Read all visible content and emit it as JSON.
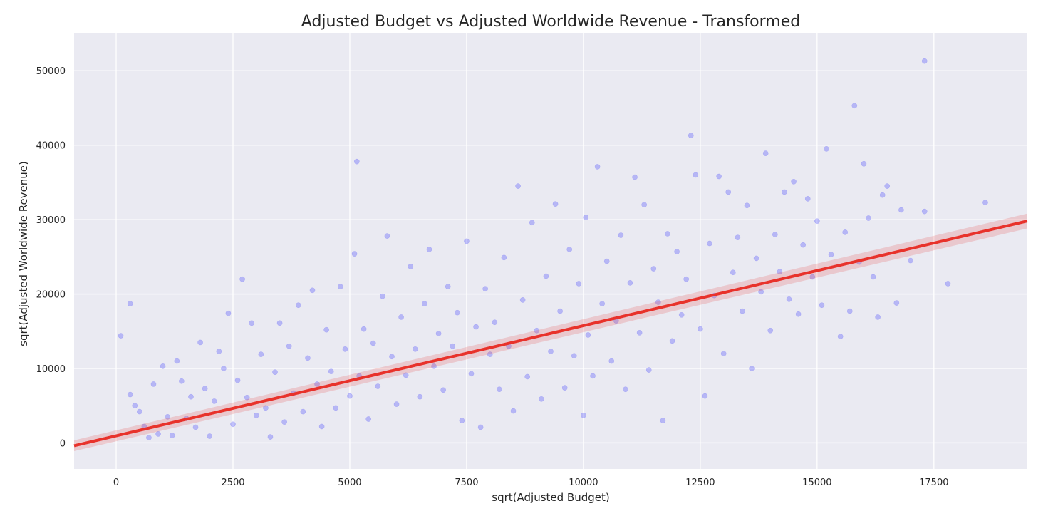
{
  "chart_data": {
    "type": "scatter",
    "title": "Adjusted Budget vs Adjusted Worldwide Revenue - Transformed",
    "xlabel": "sqrt(Adjusted Budget)",
    "ylabel": "sqrt(Adjusted Worldwide Revenue)",
    "xlim": [
      -900,
      19500
    ],
    "ylim": [
      -3500,
      55000
    ],
    "xticks": [
      0,
      2500,
      5000,
      7500,
      10000,
      12500,
      15000,
      17500
    ],
    "yticks": [
      0,
      10000,
      20000,
      30000,
      40000,
      50000
    ],
    "xtick_labels": [
      "0",
      "2500",
      "5000",
      "7500",
      "10000",
      "12500",
      "15000",
      "17500"
    ],
    "ytick_labels": [
      "0",
      "10000",
      "20000",
      "30000",
      "40000",
      "50000"
    ],
    "grid": true,
    "background_color": "#eaeaf2",
    "point_color": "#0000ff",
    "line_color": "#e8322b",
    "regression_line": {
      "intercept": 950,
      "slope": 1.48
    },
    "points": [
      [
        100,
        14400
      ],
      [
        300,
        18700
      ],
      [
        300,
        6500
      ],
      [
        400,
        5000
      ],
      [
        500,
        4200
      ],
      [
        600,
        2200
      ],
      [
        700,
        700
      ],
      [
        800,
        7900
      ],
      [
        900,
        1200
      ],
      [
        1000,
        10300
      ],
      [
        1100,
        3500
      ],
      [
        1200,
        1000
      ],
      [
        1300,
        11000
      ],
      [
        1400,
        8300
      ],
      [
        1500,
        3300
      ],
      [
        1600,
        6200
      ],
      [
        1700,
        2100
      ],
      [
        1800,
        13500
      ],
      [
        1900,
        7300
      ],
      [
        2000,
        900
      ],
      [
        2100,
        5600
      ],
      [
        2200,
        12300
      ],
      [
        2300,
        10000
      ],
      [
        2400,
        17400
      ],
      [
        2500,
        2500
      ],
      [
        2600,
        8400
      ],
      [
        2700,
        22000
      ],
      [
        2800,
        6100
      ],
      [
        2900,
        16100
      ],
      [
        3000,
        3700
      ],
      [
        3100,
        11900
      ],
      [
        3200,
        4700
      ],
      [
        3300,
        800
      ],
      [
        3400,
        9500
      ],
      [
        3500,
        16100
      ],
      [
        3600,
        2800
      ],
      [
        3700,
        13000
      ],
      [
        3800,
        6700
      ],
      [
        3900,
        18500
      ],
      [
        4000,
        4200
      ],
      [
        4100,
        11400
      ],
      [
        4200,
        20500
      ],
      [
        4300,
        7900
      ],
      [
        4400,
        2200
      ],
      [
        4500,
        15200
      ],
      [
        4600,
        9600
      ],
      [
        4700,
        4700
      ],
      [
        4800,
        21000
      ],
      [
        4900,
        12600
      ],
      [
        5000,
        6300
      ],
      [
        5100,
        25400
      ],
      [
        5150,
        37800
      ],
      [
        5200,
        9000
      ],
      [
        5300,
        15300
      ],
      [
        5400,
        3200
      ],
      [
        5500,
        13400
      ],
      [
        5600,
        7600
      ],
      [
        5700,
        19700
      ],
      [
        5800,
        27800
      ],
      [
        5900,
        11600
      ],
      [
        6000,
        5200
      ],
      [
        6100,
        16900
      ],
      [
        6200,
        9100
      ],
      [
        6300,
        23700
      ],
      [
        6400,
        12600
      ],
      [
        6500,
        6200
      ],
      [
        6600,
        18700
      ],
      [
        6700,
        26000
      ],
      [
        6800,
        10300
      ],
      [
        6900,
        14700
      ],
      [
        7000,
        7100
      ],
      [
        7100,
        21000
      ],
      [
        7200,
        13000
      ],
      [
        7300,
        17500
      ],
      [
        7400,
        3000
      ],
      [
        7500,
        27100
      ],
      [
        7600,
        9300
      ],
      [
        7700,
        15600
      ],
      [
        7800,
        2100
      ],
      [
        7900,
        20700
      ],
      [
        8000,
        11900
      ],
      [
        8100,
        16200
      ],
      [
        8200,
        7200
      ],
      [
        8300,
        24900
      ],
      [
        8400,
        13000
      ],
      [
        8500,
        4300
      ],
      [
        8600,
        34500
      ],
      [
        8700,
        19200
      ],
      [
        8800,
        8900
      ],
      [
        8900,
        29600
      ],
      [
        9000,
        15100
      ],
      [
        9100,
        5900
      ],
      [
        9200,
        22400
      ],
      [
        9300,
        12300
      ],
      [
        9400,
        32100
      ],
      [
        9500,
        17700
      ],
      [
        9600,
        7400
      ],
      [
        9700,
        26000
      ],
      [
        9800,
        11700
      ],
      [
        9900,
        21400
      ],
      [
        10000,
        3700
      ],
      [
        10050,
        30300
      ],
      [
        10100,
        14500
      ],
      [
        10200,
        9000
      ],
      [
        10300,
        37100
      ],
      [
        10400,
        18700
      ],
      [
        10500,
        24400
      ],
      [
        10600,
        11000
      ],
      [
        10700,
        16400
      ],
      [
        10800,
        27900
      ],
      [
        10900,
        7200
      ],
      [
        11000,
        21500
      ],
      [
        11100,
        35700
      ],
      [
        11200,
        14800
      ],
      [
        11300,
        32000
      ],
      [
        11400,
        9800
      ],
      [
        11500,
        23400
      ],
      [
        11600,
        18900
      ],
      [
        11700,
        3000
      ],
      [
        11800,
        28100
      ],
      [
        11900,
        13700
      ],
      [
        12000,
        25700
      ],
      [
        12100,
        17200
      ],
      [
        12200,
        22000
      ],
      [
        12300,
        41300
      ],
      [
        12400,
        36000
      ],
      [
        12500,
        15300
      ],
      [
        12600,
        6300
      ],
      [
        12700,
        26800
      ],
      [
        12800,
        19800
      ],
      [
        12900,
        35800
      ],
      [
        13000,
        12000
      ],
      [
        13100,
        33700
      ],
      [
        13200,
        22900
      ],
      [
        13300,
        27600
      ],
      [
        13400,
        17700
      ],
      [
        13500,
        31900
      ],
      [
        13600,
        10000
      ],
      [
        13700,
        24800
      ],
      [
        13800,
        20300
      ],
      [
        13900,
        38900
      ],
      [
        14000,
        15100
      ],
      [
        14100,
        28000
      ],
      [
        14200,
        23000
      ],
      [
        14300,
        33700
      ],
      [
        14400,
        19300
      ],
      [
        14500,
        35100
      ],
      [
        14600,
        17300
      ],
      [
        14700,
        26600
      ],
      [
        14800,
        32800
      ],
      [
        14900,
        22300
      ],
      [
        15000,
        29800
      ],
      [
        15100,
        18500
      ],
      [
        15200,
        39500
      ],
      [
        15300,
        25300
      ],
      [
        15500,
        14300
      ],
      [
        15600,
        28300
      ],
      [
        15700,
        17700
      ],
      [
        15800,
        45300
      ],
      [
        15900,
        24300
      ],
      [
        16000,
        37500
      ],
      [
        16100,
        30200
      ],
      [
        16200,
        22300
      ],
      [
        16300,
        16900
      ],
      [
        16400,
        33300
      ],
      [
        16500,
        34500
      ],
      [
        16700,
        18800
      ],
      [
        16800,
        31300
      ],
      [
        17000,
        24500
      ],
      [
        17300,
        31100
      ],
      [
        17300,
        51300
      ],
      [
        17800,
        21400
      ],
      [
        18600,
        32300
      ]
    ]
  }
}
